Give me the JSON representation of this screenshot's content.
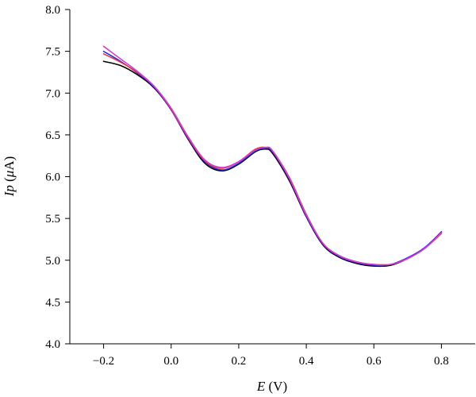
{
  "chart_data": {
    "type": "line",
    "title": "",
    "xlabel": {
      "italic": "E",
      "rest": " (V)"
    },
    "ylabel": {
      "italic": "Ip",
      "rest": " (",
      "mu": "μ",
      "unit": "A)"
    },
    "xlim": [
      -0.3,
      0.9
    ],
    "ylim": [
      4.0,
      8.0
    ],
    "xticks": [
      -0.2,
      0.0,
      0.2,
      0.4,
      0.6,
      0.8
    ],
    "xtick_labels": [
      "−0.2",
      "0.0",
      "0.2",
      "0.4",
      "0.6",
      "0.8"
    ],
    "yticks": [
      4.0,
      4.5,
      5.0,
      5.5,
      6.0,
      6.5,
      7.0,
      7.5,
      8.0
    ],
    "ytick_labels": [
      "4.0",
      "4.5",
      "5.0",
      "5.5",
      "6.0",
      "6.5",
      "7.0",
      "7.5",
      "8.0"
    ],
    "grid": false,
    "legend": "none",
    "x": [
      -0.2,
      -0.15,
      -0.1,
      -0.05,
      0.0,
      0.05,
      0.1,
      0.15,
      0.2,
      0.25,
      0.28,
      0.3,
      0.35,
      0.4,
      0.45,
      0.5,
      0.55,
      0.6,
      0.65,
      0.7,
      0.75,
      0.8
    ],
    "series": [
      {
        "color": "#000000",
        "values": [
          7.38,
          7.33,
          7.22,
          7.06,
          6.8,
          6.45,
          6.16,
          6.07,
          6.15,
          6.3,
          6.33,
          6.28,
          5.95,
          5.52,
          5.18,
          5.03,
          4.96,
          4.93,
          4.94,
          5.02,
          5.14,
          5.34
        ]
      },
      {
        "color": "#2a2ad6",
        "values": [
          7.5,
          7.38,
          7.24,
          7.07,
          6.8,
          6.46,
          6.18,
          6.08,
          6.16,
          6.31,
          6.34,
          6.3,
          5.97,
          5.53,
          5.19,
          5.04,
          4.97,
          4.94,
          4.95,
          5.03,
          5.15,
          5.34
        ]
      },
      {
        "color": "#e43b3b",
        "values": [
          7.47,
          7.37,
          7.25,
          7.08,
          6.81,
          6.47,
          6.19,
          6.1,
          6.18,
          6.33,
          6.35,
          6.31,
          5.99,
          5.55,
          5.2,
          5.05,
          4.98,
          4.95,
          4.95,
          5.02,
          5.14,
          5.32
        ]
      },
      {
        "color": "#d63bd6",
        "values": [
          7.56,
          7.41,
          7.26,
          7.08,
          6.82,
          6.48,
          6.2,
          6.11,
          6.18,
          6.32,
          6.35,
          6.31,
          5.98,
          5.54,
          5.2,
          5.05,
          4.98,
          4.95,
          4.95,
          5.02,
          5.14,
          5.33
        ]
      }
    ]
  }
}
